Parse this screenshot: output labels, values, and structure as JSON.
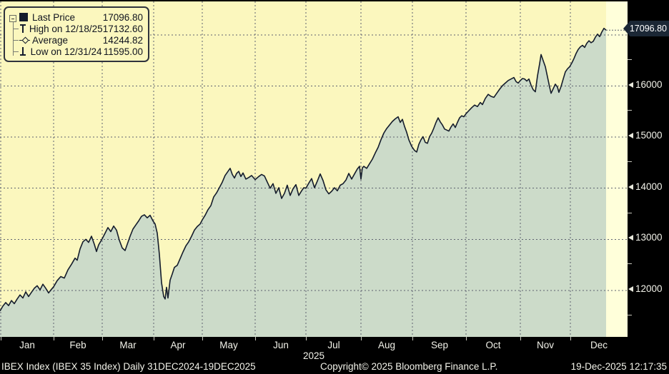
{
  "colors": {
    "frame": "#000000",
    "plot_bg": "#FBF7BE",
    "after_data_strip": "#FFFFDA",
    "area_fill": "#CCDBC9",
    "line": "#141C2C",
    "grid": "#5E6270",
    "axis_text": "#F2F2E9",
    "flag_bg": "#1B2735",
    "flag_text": "#FFFFFF",
    "legend_text": "#10141F"
  },
  "legend": {
    "items": [
      {
        "marker": "square",
        "label": "Last Price",
        "value": "17096.80"
      },
      {
        "marker": "high",
        "label": "High on 12/18/25",
        "value": "17132.60"
      },
      {
        "marker": "average",
        "label": "Average",
        "value": "14244.82"
      },
      {
        "marker": "low",
        "label": "Low on 12/31/24",
        "value": "11595.00"
      }
    ]
  },
  "price_flag": "17096.80",
  "footer": {
    "left": "IBEX Index (IBEX 35 Index) Daily 31DEC2024-19DEC2025",
    "center": "Copyright© 2025 Bloomberg Finance L.P.",
    "right": "19-Dec-2025 12:17:35"
  },
  "chart_data": {
    "type": "area",
    "title": "IBEX Index (IBEX 35 Index) Daily 31DEC2024-19DEC2025",
    "series_name": "Last Price",
    "last_price": 17096.8,
    "high": {
      "date": "12/18/25",
      "value": 17132.6
    },
    "average": 14244.82,
    "low": {
      "date": "12/31/24",
      "value": 11595.0
    },
    "ylim": [
      11060,
      17660
    ],
    "yticks": [
      12000,
      13000,
      14000,
      15000,
      16000,
      17000
    ],
    "y_minor_ticks": [
      11500,
      12500,
      13500,
      14500,
      15500,
      16500
    ],
    "month_labels": [
      "Jan",
      "Feb",
      "Mar",
      "Apr",
      "May",
      "Jun",
      "Jul",
      "Aug",
      "Sep",
      "Oct",
      "Nov",
      "Dec"
    ],
    "month_boundaries_frac": [
      0.0011,
      0.0854,
      0.1629,
      0.2449,
      0.3223,
      0.4066,
      0.4875,
      0.5752,
      0.6572,
      0.7426,
      0.8292,
      0.9089,
      1.0
    ],
    "year_label": "2025",
    "grid": true,
    "legend_position": "top-left",
    "points": [
      [
        0.0,
        11595
      ],
      [
        0.0046,
        11690
      ],
      [
        0.0091,
        11760
      ],
      [
        0.0137,
        11700
      ],
      [
        0.0182,
        11800
      ],
      [
        0.0228,
        11740
      ],
      [
        0.0273,
        11830
      ],
      [
        0.0319,
        11910
      ],
      [
        0.0364,
        11850
      ],
      [
        0.041,
        11970
      ],
      [
        0.0456,
        11880
      ],
      [
        0.0501,
        11960
      ],
      [
        0.0547,
        12040
      ],
      [
        0.0592,
        12090
      ],
      [
        0.0638,
        12010
      ],
      [
        0.0683,
        12120
      ],
      [
        0.0729,
        12040
      ],
      [
        0.0774,
        11950
      ],
      [
        0.082,
        12020
      ],
      [
        0.0854,
        12070
      ],
      [
        0.0911,
        12190
      ],
      [
        0.0968,
        12270
      ],
      [
        0.1025,
        12240
      ],
      [
        0.1082,
        12400
      ],
      [
        0.1139,
        12510
      ],
      [
        0.1196,
        12630
      ],
      [
        0.123,
        12590
      ],
      [
        0.1276,
        12810
      ],
      [
        0.1321,
        12950
      ],
      [
        0.1367,
        13000
      ],
      [
        0.1412,
        12940
      ],
      [
        0.1458,
        13060
      ],
      [
        0.1503,
        12900
      ],
      [
        0.1538,
        12760
      ],
      [
        0.1572,
        12890
      ],
      [
        0.1629,
        13010
      ],
      [
        0.1674,
        13120
      ],
      [
        0.172,
        13230
      ],
      [
        0.1765,
        13150
      ],
      [
        0.1811,
        13260
      ],
      [
        0.1856,
        13180
      ],
      [
        0.1902,
        12980
      ],
      [
        0.1948,
        12830
      ],
      [
        0.1993,
        12780
      ],
      [
        0.2027,
        12900
      ],
      [
        0.2073,
        13060
      ],
      [
        0.2118,
        13200
      ],
      [
        0.2164,
        13280
      ],
      [
        0.221,
        13360
      ],
      [
        0.2255,
        13450
      ],
      [
        0.2301,
        13480
      ],
      [
        0.2346,
        13420
      ],
      [
        0.2392,
        13470
      ],
      [
        0.2437,
        13360
      ],
      [
        0.2472,
        13300
      ],
      [
        0.2506,
        13120
      ],
      [
        0.254,
        12700
      ],
      [
        0.2574,
        12150
      ],
      [
        0.2608,
        11880
      ],
      [
        0.2631,
        11830
      ],
      [
        0.2654,
        12060
      ],
      [
        0.2677,
        11850
      ],
      [
        0.2711,
        12200
      ],
      [
        0.2745,
        12320
      ],
      [
        0.2779,
        12450
      ],
      [
        0.2825,
        12490
      ],
      [
        0.287,
        12620
      ],
      [
        0.2916,
        12750
      ],
      [
        0.2961,
        12870
      ],
      [
        0.3007,
        12950
      ],
      [
        0.3052,
        13060
      ],
      [
        0.3098,
        13180
      ],
      [
        0.3143,
        13250
      ],
      [
        0.3189,
        13300
      ],
      [
        0.3223,
        13380
      ],
      [
        0.3269,
        13470
      ],
      [
        0.3314,
        13580
      ],
      [
        0.336,
        13660
      ],
      [
        0.3405,
        13830
      ],
      [
        0.3451,
        13910
      ],
      [
        0.3496,
        14010
      ],
      [
        0.3542,
        14120
      ],
      [
        0.3587,
        14250
      ],
      [
        0.3633,
        14330
      ],
      [
        0.3667,
        14390
      ],
      [
        0.3702,
        14270
      ],
      [
        0.3736,
        14200
      ],
      [
        0.377,
        14290
      ],
      [
        0.3804,
        14330
      ],
      [
        0.3838,
        14230
      ],
      [
        0.3872,
        14300
      ],
      [
        0.3918,
        14180
      ],
      [
        0.3963,
        14210
      ],
      [
        0.4009,
        14250
      ],
      [
        0.4066,
        14170
      ],
      [
        0.4123,
        14230
      ],
      [
        0.4169,
        14270
      ],
      [
        0.4214,
        14240
      ],
      [
        0.426,
        14120
      ],
      [
        0.4305,
        14000
      ],
      [
        0.4351,
        14090
      ],
      [
        0.4396,
        13900
      ],
      [
        0.4442,
        14010
      ],
      [
        0.4487,
        13800
      ],
      [
        0.4533,
        13900
      ],
      [
        0.4578,
        14060
      ],
      [
        0.4624,
        13860
      ],
      [
        0.467,
        13990
      ],
      [
        0.4715,
        14070
      ],
      [
        0.4761,
        13860
      ],
      [
        0.4806,
        13950
      ],
      [
        0.484,
        14010
      ],
      [
        0.4875,
        14000
      ],
      [
        0.492,
        14100
      ],
      [
        0.4966,
        14190
      ],
      [
        0.5011,
        14010
      ],
      [
        0.5057,
        14140
      ],
      [
        0.5103,
        14280
      ],
      [
        0.5148,
        14150
      ],
      [
        0.5194,
        13970
      ],
      [
        0.5239,
        13890
      ],
      [
        0.5285,
        13940
      ],
      [
        0.533,
        14010
      ],
      [
        0.5376,
        13950
      ],
      [
        0.5421,
        14060
      ],
      [
        0.5467,
        14090
      ],
      [
        0.5513,
        14160
      ],
      [
        0.5558,
        14290
      ],
      [
        0.5604,
        14180
      ],
      [
        0.5649,
        14280
      ],
      [
        0.5695,
        14380
      ],
      [
        0.5729,
        14430
      ],
      [
        0.5752,
        14180
      ],
      [
        0.5775,
        14400
      ],
      [
        0.5797,
        14430
      ],
      [
        0.5843,
        14390
      ],
      [
        0.5888,
        14480
      ],
      [
        0.5934,
        14570
      ],
      [
        0.5979,
        14690
      ],
      [
        0.6025,
        14800
      ],
      [
        0.6071,
        14950
      ],
      [
        0.6116,
        15080
      ],
      [
        0.6162,
        15170
      ],
      [
        0.6207,
        15240
      ],
      [
        0.6253,
        15310
      ],
      [
        0.6298,
        15360
      ],
      [
        0.6344,
        15400
      ],
      [
        0.6378,
        15290
      ],
      [
        0.6412,
        15350
      ],
      [
        0.6446,
        15210
      ],
      [
        0.648,
        15100
      ],
      [
        0.6515,
        14950
      ],
      [
        0.656,
        14820
      ],
      [
        0.6606,
        14740
      ],
      [
        0.664,
        14710
      ],
      [
        0.6674,
        14860
      ],
      [
        0.6708,
        14950
      ],
      [
        0.6742,
        15010
      ],
      [
        0.6777,
        14900
      ],
      [
        0.6811,
        14880
      ],
      [
        0.6845,
        15010
      ],
      [
        0.6879,
        15080
      ],
      [
        0.6913,
        15180
      ],
      [
        0.6948,
        15290
      ],
      [
        0.6982,
        15380
      ],
      [
        0.7016,
        15300
      ],
      [
        0.705,
        15240
      ],
      [
        0.7084,
        15160
      ],
      [
        0.7118,
        15140
      ],
      [
        0.7153,
        15120
      ],
      [
        0.7187,
        15200
      ],
      [
        0.7221,
        15260
      ],
      [
        0.7255,
        15190
      ],
      [
        0.7289,
        15290
      ],
      [
        0.7323,
        15380
      ],
      [
        0.7358,
        15420
      ],
      [
        0.7392,
        15400
      ],
      [
        0.7426,
        15460
      ],
      [
        0.7472,
        15520
      ],
      [
        0.7517,
        15580
      ],
      [
        0.7563,
        15630
      ],
      [
        0.7608,
        15600
      ],
      [
        0.7654,
        15680
      ],
      [
        0.7688,
        15640
      ],
      [
        0.7734,
        15760
      ],
      [
        0.7779,
        15840
      ],
      [
        0.7825,
        15800
      ],
      [
        0.787,
        15780
      ],
      [
        0.7916,
        15860
      ],
      [
        0.7961,
        15940
      ],
      [
        0.8007,
        16010
      ],
      [
        0.8052,
        16060
      ],
      [
        0.8098,
        16110
      ],
      [
        0.8144,
        16140
      ],
      [
        0.8189,
        16170
      ],
      [
        0.8223,
        16090
      ],
      [
        0.8257,
        16060
      ],
      [
        0.8292,
        16110
      ],
      [
        0.8326,
        16150
      ],
      [
        0.836,
        16140
      ],
      [
        0.8394,
        16100
      ],
      [
        0.8428,
        16140
      ],
      [
        0.8462,
        16020
      ],
      [
        0.8497,
        15930
      ],
      [
        0.8531,
        15890
      ],
      [
        0.8565,
        16200
      ],
      [
        0.8599,
        16440
      ],
      [
        0.8622,
        16620
      ],
      [
        0.8656,
        16500
      ],
      [
        0.869,
        16380
      ],
      [
        0.8724,
        16180
      ],
      [
        0.8758,
        15980
      ],
      [
        0.8781,
        15860
      ],
      [
        0.8815,
        15950
      ],
      [
        0.8849,
        16040
      ],
      [
        0.8884,
        15980
      ],
      [
        0.8906,
        15880
      ],
      [
        0.894,
        15990
      ],
      [
        0.8975,
        16140
      ],
      [
        0.9009,
        16280
      ],
      [
        0.9043,
        16340
      ],
      [
        0.9077,
        16380
      ],
      [
        0.9111,
        16450
      ],
      [
        0.9146,
        16540
      ],
      [
        0.918,
        16640
      ],
      [
        0.9214,
        16720
      ],
      [
        0.9248,
        16770
      ],
      [
        0.9283,
        16800
      ],
      [
        0.9317,
        16760
      ],
      [
        0.9351,
        16840
      ],
      [
        0.9385,
        16890
      ],
      [
        0.9419,
        16850
      ],
      [
        0.9454,
        16880
      ],
      [
        0.9488,
        16960
      ],
      [
        0.9522,
        17020
      ],
      [
        0.9556,
        16970
      ],
      [
        0.959,
        17060
      ],
      [
        0.9624,
        17132.6
      ],
      [
        0.9658,
        17096.8
      ]
    ]
  }
}
